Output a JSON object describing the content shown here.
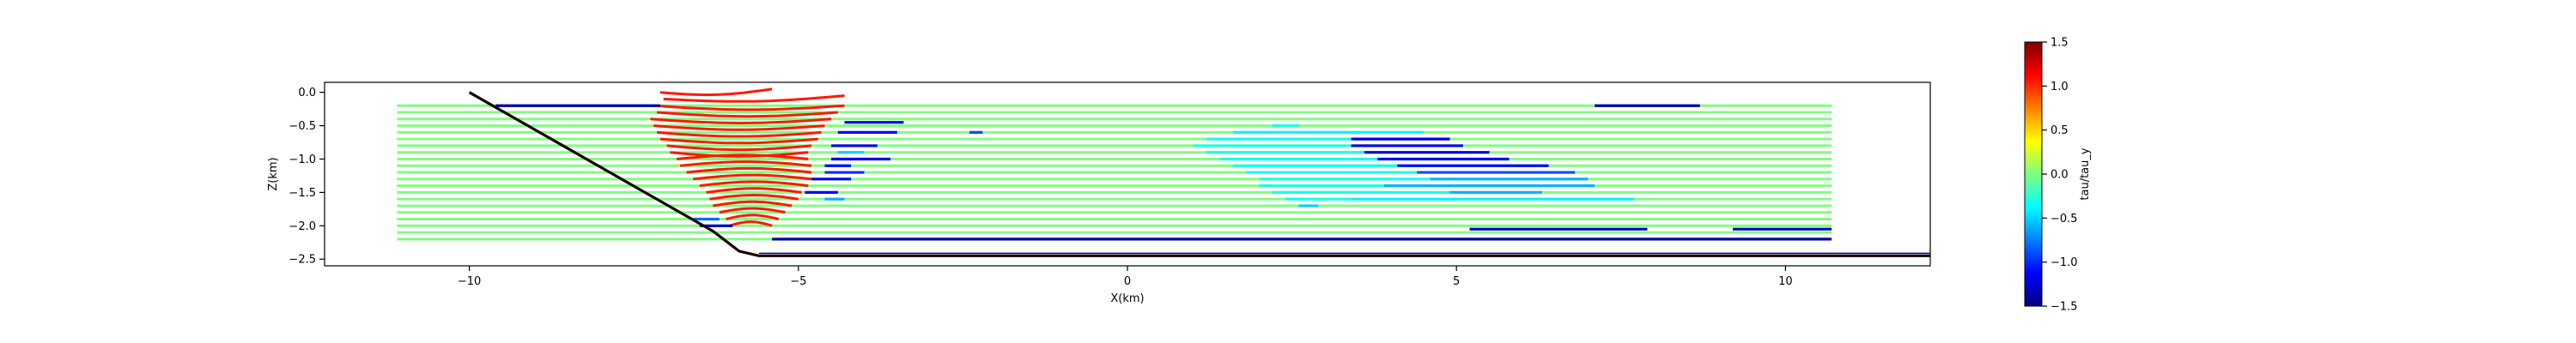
{
  "chart_data": {
    "type": "line",
    "title": "",
    "xlabel": "X(km)",
    "ylabel": "Z(km)",
    "xlim": [
      -12.2,
      12.2
    ],
    "ylim": [
      -2.6,
      0.15
    ],
    "xticks": [
      -10,
      -5,
      0,
      5,
      10
    ],
    "xtick_labels": [
      "−10",
      "−5",
      "0",
      "5",
      "10"
    ],
    "yticks": [
      0.0,
      -0.5,
      -1.0,
      -1.5,
      -2.0,
      -2.5
    ],
    "ytick_labels": [
      "0.0",
      "−0.5",
      "−1.0",
      "−1.5",
      "−2.0",
      "−2.5"
    ],
    "grid": false,
    "colorbar": {
      "label": "tau/tau_y",
      "colormap": "jet",
      "range": [
        -1.5,
        1.5
      ],
      "ticks": [
        1.5,
        1.0,
        0.5,
        0.0,
        -0.5,
        -1.0,
        -1.5
      ],
      "tick_labels": [
        "1.5",
        "1.0",
        "0.5",
        "0.0",
        "−0.5",
        "−1.0",
        "−1.5"
      ]
    },
    "fault": {
      "name": "",
      "points": [
        [
          -10,
          0.0
        ],
        [
          -6.3,
          -2.08
        ],
        [
          -5.9,
          -2.38
        ],
        [
          -5.6,
          -2.45
        ],
        [
          12.2,
          -2.45
        ]
      ],
      "color": "#1a0000"
    },
    "lines": {
      "z_levels": [
        -0.2,
        -0.3,
        -0.4,
        -0.5,
        -0.6,
        -0.7,
        -0.8,
        -0.9,
        -1.0,
        -1.1,
        -1.2,
        -1.3,
        -1.4,
        -1.5,
        -1.6,
        -1.7,
        -1.8,
        -1.9,
        -2.0,
        -2.1,
        -2.2
      ],
      "x_start": -11.1,
      "x_end": 10.7,
      "background_value": 0.0
    },
    "orange_bands": {
      "value": 1.05,
      "z_levels": [
        0.0,
        -0.1,
        -0.2,
        -0.3,
        -0.4,
        -0.5,
        -0.6,
        -0.7,
        -0.8,
        -0.9,
        -1.0,
        -1.1,
        -1.2,
        -1.3,
        -1.4,
        -1.5,
        -1.6,
        -1.7,
        -1.8,
        -1.9,
        -2.0
      ],
      "x_left": [
        -7.1,
        -7.05,
        -7.2,
        -7.15,
        -7.25,
        -7.2,
        -7.15,
        -7.1,
        -7.0,
        -6.95,
        -6.85,
        -6.8,
        -6.7,
        -6.6,
        -6.5,
        -6.4,
        -6.35,
        -6.3,
        -6.2,
        -6.1,
        -6.05
      ],
      "x_right": [
        -5.4,
        -4.3,
        -4.3,
        -4.4,
        -4.5,
        -4.6,
        -4.65,
        -4.7,
        -4.8,
        -4.85,
        -4.85,
        -4.8,
        -4.8,
        -4.8,
        -4.85,
        -4.95,
        -5.0,
        -5.1,
        -5.2,
        -5.3,
        -5.4
      ]
    },
    "segments": [
      {
        "z": -0.2,
        "x0": -9.6,
        "x1": -7.1,
        "value": -1.4
      },
      {
        "z": -0.2,
        "x0": 7.1,
        "x1": 8.7,
        "value": -1.4
      },
      {
        "z": -0.45,
        "x0": -4.3,
        "x1": -3.4,
        "value": -1.2
      },
      {
        "z": -0.6,
        "x0": -4.4,
        "x1": -3.5,
        "value": -1.1
      },
      {
        "z": -0.6,
        "x0": -2.4,
        "x1": -2.2,
        "value": -0.9
      },
      {
        "z": -0.8,
        "x0": -4.5,
        "x1": -3.8,
        "value": -1.2
      },
      {
        "z": -0.9,
        "x0": -4.4,
        "x1": -4.0,
        "value": -0.5
      },
      {
        "z": -1.0,
        "x0": -4.5,
        "x1": -3.6,
        "value": -1.2
      },
      {
        "z": -1.1,
        "x0": -4.6,
        "x1": -4.2,
        "value": -1.1
      },
      {
        "z": -1.2,
        "x0": -4.6,
        "x1": -4.0,
        "value": -1.0
      },
      {
        "z": -1.3,
        "x0": -4.8,
        "x1": -4.2,
        "value": -1.2
      },
      {
        "z": -1.5,
        "x0": -4.9,
        "x1": -4.4,
        "value": -1.1
      },
      {
        "z": -1.6,
        "x0": -4.6,
        "x1": -4.3,
        "value": -0.6
      },
      {
        "z": -0.5,
        "x0": 2.2,
        "x1": 2.6,
        "value": -0.3
      },
      {
        "z": -0.6,
        "x0": 1.6,
        "x1": 4.5,
        "value": -0.4
      },
      {
        "z": -0.7,
        "x0": 1.2,
        "x1": 3.4,
        "value": -0.3
      },
      {
        "z": -0.7,
        "x0": 3.4,
        "x1": 4.9,
        "value": -1.2
      },
      {
        "z": -0.8,
        "x0": 1.0,
        "x1": 3.4,
        "value": -0.3
      },
      {
        "z": -0.8,
        "x0": 3.4,
        "x1": 5.1,
        "value": -1.2
      },
      {
        "z": -0.9,
        "x0": 1.2,
        "x1": 3.6,
        "value": -0.3
      },
      {
        "z": -0.9,
        "x0": 3.6,
        "x1": 5.5,
        "value": -1.2
      },
      {
        "z": -1.0,
        "x0": 1.4,
        "x1": 3.8,
        "value": -0.3
      },
      {
        "z": -1.0,
        "x0": 3.8,
        "x1": 5.8,
        "value": -1.1
      },
      {
        "z": -1.1,
        "x0": 1.6,
        "x1": 4.1,
        "value": -0.3
      },
      {
        "z": -1.1,
        "x0": 4.1,
        "x1": 6.4,
        "value": -1.1
      },
      {
        "z": -1.2,
        "x0": 1.8,
        "x1": 4.4,
        "value": -0.3
      },
      {
        "z": -1.2,
        "x0": 4.4,
        "x1": 6.8,
        "value": -0.9
      },
      {
        "z": -1.3,
        "x0": 2.0,
        "x1": 4.6,
        "value": -0.3
      },
      {
        "z": -1.3,
        "x0": 4.6,
        "x1": 7.0,
        "value": -0.6
      },
      {
        "z": -1.4,
        "x0": 2.0,
        "x1": 3.9,
        "value": -0.3
      },
      {
        "z": -1.4,
        "x0": 3.9,
        "x1": 7.1,
        "value": -0.6
      },
      {
        "z": -1.5,
        "x0": 2.2,
        "x1": 4.9,
        "value": -0.3
      },
      {
        "z": -1.5,
        "x0": 4.9,
        "x1": 6.3,
        "value": -0.6
      },
      {
        "z": -1.6,
        "x0": 2.4,
        "x1": 3.4,
        "value": -0.3
      },
      {
        "z": -1.6,
        "x0": 3.4,
        "x1": 7.7,
        "value": -0.4
      },
      {
        "z": -1.7,
        "x0": 2.6,
        "x1": 2.9,
        "value": -0.5
      },
      {
        "z": -2.05,
        "x0": 5.2,
        "x1": 7.9,
        "value": -1.3
      },
      {
        "z": -2.05,
        "x0": 9.2,
        "x1": 10.7,
        "value": -1.3
      },
      {
        "z": -2.2,
        "x0": -5.4,
        "x1": 10.7,
        "value": -1.4
      },
      {
        "z": -1.9,
        "x0": -6.6,
        "x1": -6.2,
        "value": -0.8
      },
      {
        "z": -2.0,
        "x0": -6.5,
        "x1": -6.0,
        "value": -1.3
      }
    ]
  }
}
